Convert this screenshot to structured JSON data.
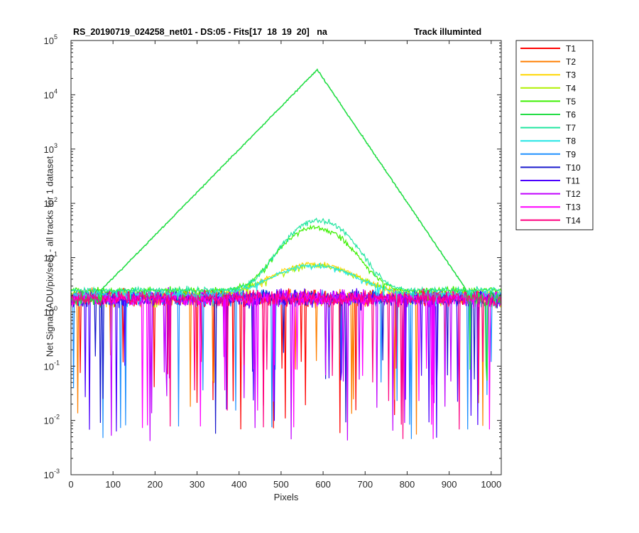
{
  "chart_data": {
    "type": "line",
    "title_left": "RS_20190719_024258_net01 - DS:05 - Fits[17  18  19  20]   na",
    "title_right": "Track illuminted",
    "xlabel": "Pixels",
    "ylabel": "Net Signal (ADU/pix/sec) - all tracks for 1 dataset",
    "xlim": [
      0,
      1024
    ],
    "ylim": [
      0.001,
      100000
    ],
    "yscale": "log",
    "grid": false,
    "legend_position": "outside-right",
    "x_ticks": [
      "0",
      "100",
      "200",
      "300",
      "400",
      "500",
      "600",
      "700",
      "800",
      "900",
      "1000"
    ],
    "x_tick_values": [
      0,
      100,
      200,
      300,
      400,
      500,
      600,
      700,
      800,
      900,
      1000
    ],
    "y_ticks": [
      {
        "base": "10",
        "exp": "-3",
        "value": 0.001
      },
      {
        "base": "10",
        "exp": "-2",
        "value": 0.01
      },
      {
        "base": "10",
        "exp": "-1",
        "value": 0.1
      },
      {
        "base": "10",
        "exp": "0",
        "value": 1
      },
      {
        "base": "10",
        "exp": "1",
        "value": 10
      },
      {
        "base": "10",
        "exp": "2",
        "value": 100
      },
      {
        "base": "10",
        "exp": "3",
        "value": 1000
      },
      {
        "base": "10",
        "exp": "4",
        "value": 10000
      },
      {
        "base": "10",
        "exp": "5",
        "value": 100000
      }
    ],
    "baseline": 1.8,
    "series": [
      {
        "name": "T1",
        "color": "#ff0000",
        "peak": 0,
        "peak_x": 580,
        "width": 70
      },
      {
        "name": "T2",
        "color": "#ff7f00",
        "peak": 0,
        "peak_x": 580,
        "width": 70
      },
      {
        "name": "T3",
        "color": "#ffd700",
        "peak": 5.5,
        "peak_x": 580,
        "width": 80
      },
      {
        "name": "T4",
        "color": "#b0f000",
        "peak": 5.0,
        "peak_x": 580,
        "width": 80
      },
      {
        "name": "T5",
        "color": "#3cf000",
        "peak": 33,
        "peak_x": 583,
        "width": 60
      },
      {
        "name": "T6",
        "color": "#22dd44",
        "peak": 29000,
        "peak_x": 586,
        "width": 45
      },
      {
        "name": "T7",
        "color": "#22e6a0",
        "peak": 46,
        "peak_x": 590,
        "width": 58
      },
      {
        "name": "T8",
        "color": "#22e6e6",
        "peak": 5.0,
        "peak_x": 580,
        "width": 80
      },
      {
        "name": "T9",
        "color": "#1e90ff",
        "peak": 0,
        "peak_x": 580,
        "width": 70
      },
      {
        "name": "T10",
        "color": "#1a1acd",
        "peak": 0,
        "peak_x": 580,
        "width": 70
      },
      {
        "name": "T11",
        "color": "#4b00ff",
        "peak": 0,
        "peak_x": 580,
        "width": 70
      },
      {
        "name": "T12",
        "color": "#c000ff",
        "peak": 0,
        "peak_x": 580,
        "width": 70
      },
      {
        "name": "T13",
        "color": "#ff00ff",
        "peak": 0,
        "peak_x": 580,
        "width": 70
      },
      {
        "name": "T14",
        "color": "#ff0080",
        "peak": 0,
        "peak_x": 580,
        "width": 70
      }
    ]
  }
}
